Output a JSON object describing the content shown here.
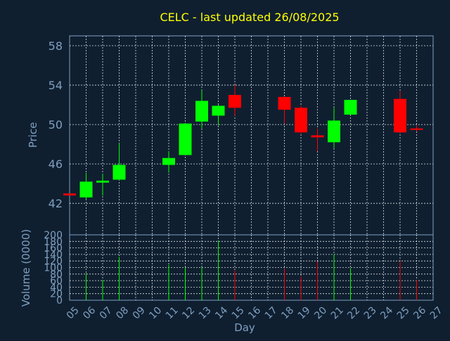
{
  "chart_data": [
    {
      "type": "candlestick",
      "title": "CELC - last updated 26/08/2025",
      "ylabel": "Price",
      "xlabel": "Day",
      "ylim": [
        38.8,
        59
      ],
      "y_ticks": [
        42,
        46,
        50,
        54,
        58
      ],
      "x_ticks": [
        "05",
        "06",
        "07",
        "08",
        "09",
        "10",
        "11",
        "12",
        "13",
        "14",
        "15",
        "16",
        "17",
        "18",
        "19",
        "20",
        "21",
        "22",
        "23",
        "24",
        "25",
        "26",
        "27"
      ],
      "grid": true,
      "colors": {
        "up": "#00ff00",
        "down": "#ff0000",
        "background": "#0f1f30",
        "plot_bg": "#0f1f30",
        "text": "#7f9fbf",
        "title": "#ffff00",
        "grid": "#ffffff"
      },
      "candles": [
        {
          "day": 5,
          "open": 43.0,
          "high": 43.0,
          "low": 42.8,
          "close": 42.8
        },
        {
          "day": 6,
          "open": 42.6,
          "high": 45.1,
          "low": 42.4,
          "close": 44.2
        },
        {
          "day": 7,
          "open": 44.1,
          "high": 45.0,
          "low": 42.8,
          "close": 44.3
        },
        {
          "day": 8,
          "open": 44.4,
          "high": 48.1,
          "low": 44.3,
          "close": 45.9
        },
        {
          "day": 11,
          "open": 45.9,
          "high": 47.3,
          "low": 45.1,
          "close": 46.6
        },
        {
          "day": 12,
          "open": 46.9,
          "high": 50.1,
          "low": 46.9,
          "close": 50.1
        },
        {
          "day": 13,
          "open": 50.3,
          "high": 53.5,
          "low": 49.6,
          "close": 52.4
        },
        {
          "day": 14,
          "open": 50.9,
          "high": 52.0,
          "low": 49.9,
          "close": 51.9
        },
        {
          "day": 15,
          "open": 53.0,
          "high": 54.0,
          "low": 50.9,
          "close": 51.7
        },
        {
          "day": 18,
          "open": 52.8,
          "high": 52.8,
          "low": 50.1,
          "close": 51.5
        },
        {
          "day": 19,
          "open": 51.7,
          "high": 51.9,
          "low": 49.1,
          "close": 49.2
        },
        {
          "day": 20,
          "open": 48.9,
          "high": 49.6,
          "low": 47.3,
          "close": 48.7
        },
        {
          "day": 21,
          "open": 48.2,
          "high": 51.7,
          "low": 47.6,
          "close": 50.4
        },
        {
          "day": 22,
          "open": 51.0,
          "high": 52.5,
          "low": 51.0,
          "close": 52.5
        },
        {
          "day": 25,
          "open": 52.6,
          "high": 53.4,
          "low": 49.2,
          "close": 49.2
        },
        {
          "day": 26,
          "open": 49.6,
          "high": 49.9,
          "low": 49.3,
          "close": 49.5
        }
      ]
    },
    {
      "type": "bar",
      "ylabel": "Volume (0000)",
      "xlabel": "Day",
      "ylim": [
        0,
        200
      ],
      "y_ticks": [
        0,
        20,
        40,
        60,
        80,
        100,
        120,
        140,
        160,
        180,
        200
      ],
      "volumes": [
        {
          "day": 6,
          "value": 82,
          "dir": "up"
        },
        {
          "day": 7,
          "value": 62,
          "dir": "up"
        },
        {
          "day": 8,
          "value": 132,
          "dir": "up"
        },
        {
          "day": 11,
          "value": 108,
          "dir": "up"
        },
        {
          "day": 12,
          "value": 100,
          "dir": "up"
        },
        {
          "day": 13,
          "value": 102,
          "dir": "up"
        },
        {
          "day": 14,
          "value": 182,
          "dir": "up"
        },
        {
          "day": 15,
          "value": 90,
          "dir": "down"
        },
        {
          "day": 18,
          "value": 96,
          "dir": "down"
        },
        {
          "day": 19,
          "value": 72,
          "dir": "down"
        },
        {
          "day": 20,
          "value": 118,
          "dir": "down"
        },
        {
          "day": 21,
          "value": 140,
          "dir": "up"
        },
        {
          "day": 22,
          "value": 98,
          "dir": "up"
        },
        {
          "day": 25,
          "value": 120,
          "dir": "down"
        },
        {
          "day": 26,
          "value": 62,
          "dir": "down"
        }
      ]
    }
  ]
}
